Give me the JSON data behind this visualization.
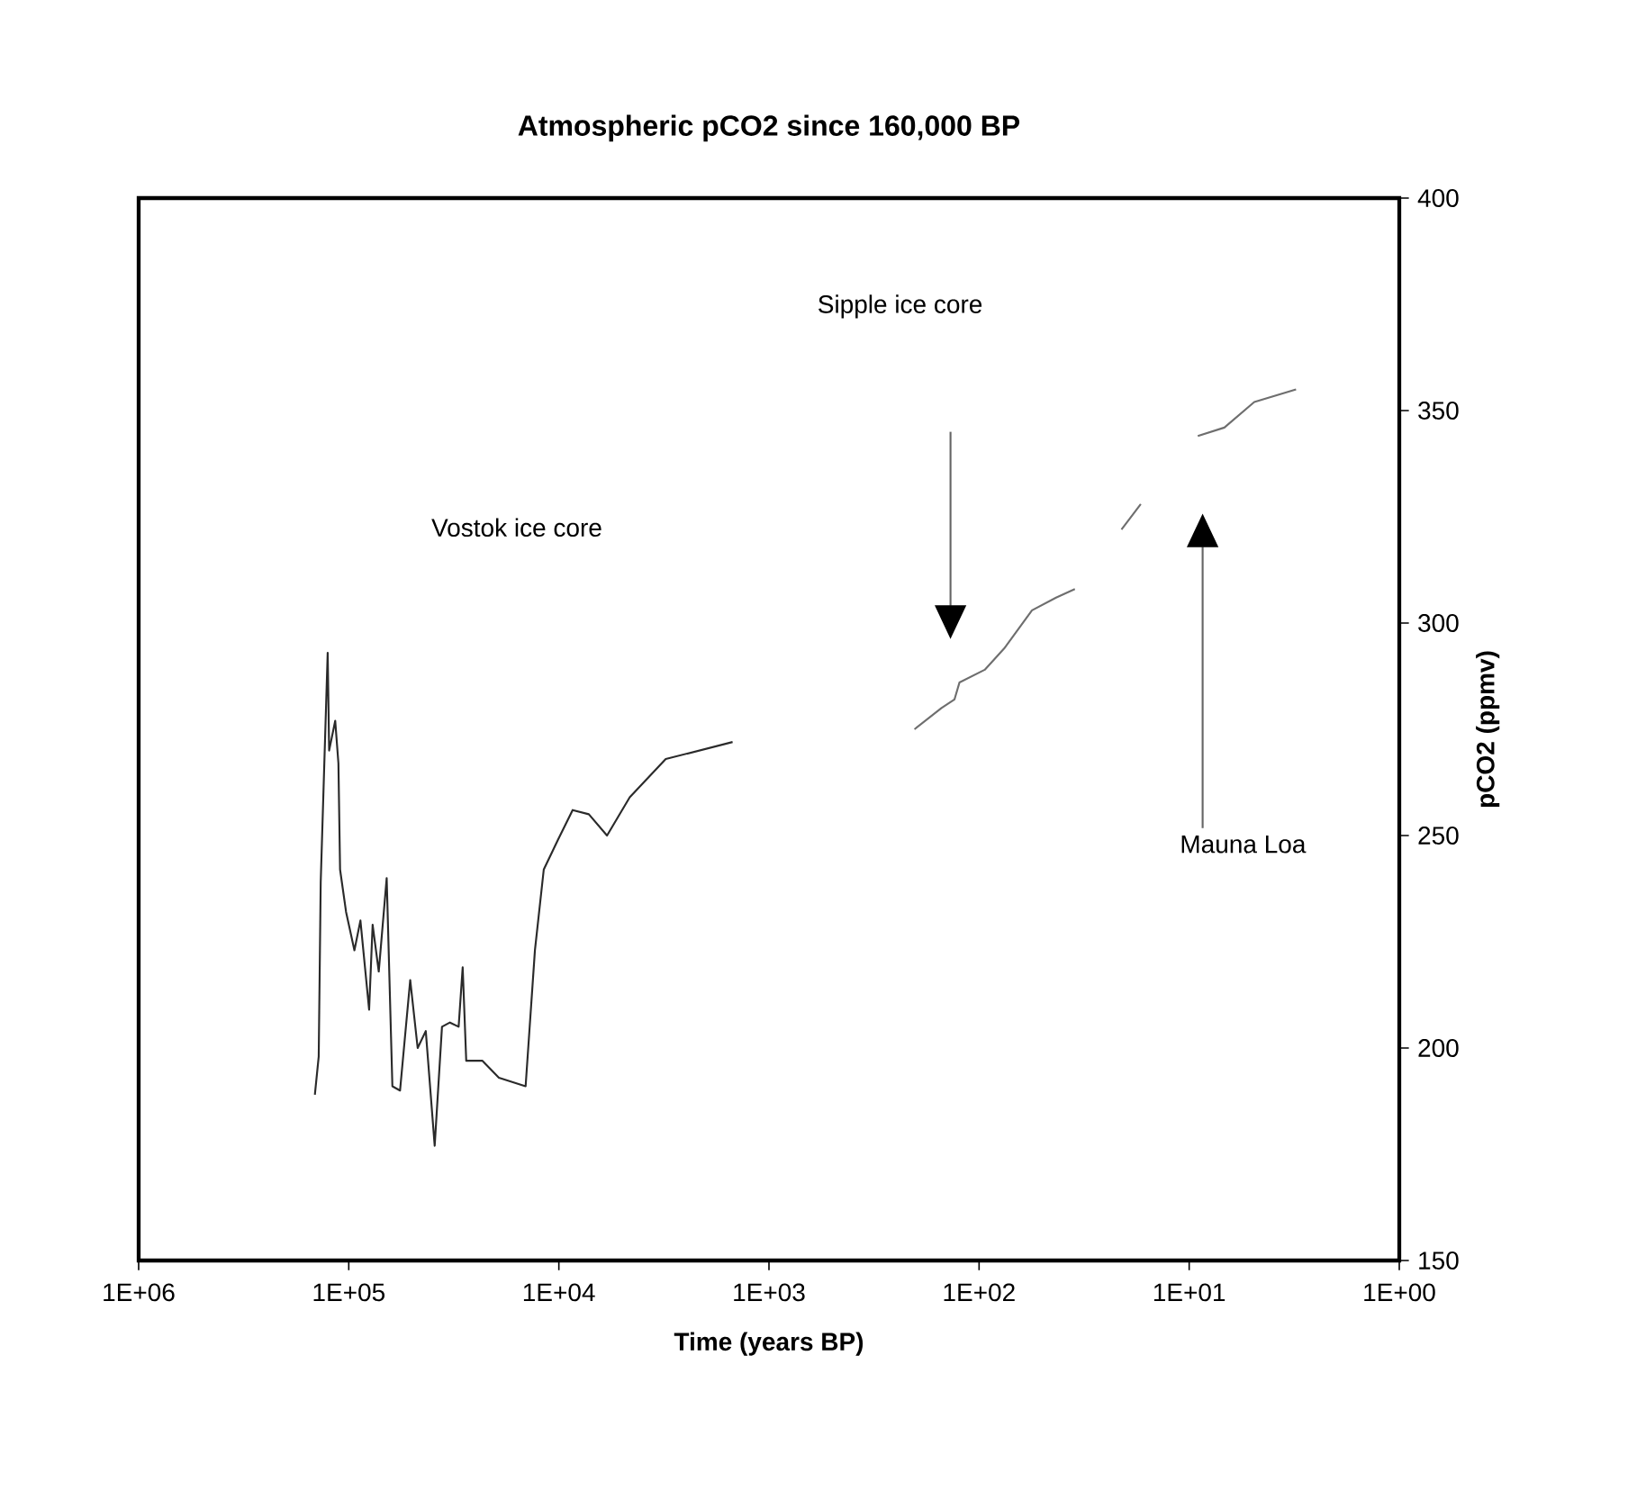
{
  "chart_data": {
    "type": "line",
    "title": "Atmospheric pCO2 since 160,000 BP",
    "xlabel": "Time (years BP)",
    "ylabel": "pCO2 (ppmv)",
    "log": "x",
    "grid": false,
    "marker": "none",
    "line_style": "solid",
    "xlim": [
      1000000,
      1
    ],
    "xticks": [
      {
        "value": 1000000,
        "label": "1E+06"
      },
      {
        "value": 100000,
        "label": "1E+05"
      },
      {
        "value": 10000,
        "label": "1E+04"
      },
      {
        "value": 1000,
        "label": "1E+03"
      },
      {
        "value": 100,
        "label": "1E+02"
      },
      {
        "value": 10,
        "label": "1E+01"
      },
      {
        "value": 1,
        "label": "1E+00"
      }
    ],
    "ylim": [
      150,
      400
    ],
    "yticks": [
      150,
      200,
      250,
      300,
      350,
      400
    ],
    "series": [
      {
        "color": "#2a2a2a",
        "x": [
          145000,
          139000,
          136000,
          126000,
          124000,
          116000,
          112000,
          110000,
          103000,
          94000,
          88000,
          80000,
          77000,
          72000,
          66000,
          62000,
          57000,
          51000,
          47000,
          43000,
          39000,
          36000,
          33000,
          30000,
          28700,
          27600,
          23100,
          19300,
          14400,
          13000,
          11800,
          10100,
          8600,
          7200,
          5900,
          4600,
          3100,
          1490
        ],
        "values": [
          189,
          198,
          239,
          293,
          270,
          277,
          267,
          242,
          232,
          223,
          230,
          209,
          229,
          218,
          240,
          191,
          190,
          216,
          200,
          204,
          177,
          205,
          206,
          205,
          219,
          197,
          197,
          193,
          191,
          223,
          242,
          249,
          256,
          255,
          250,
          259,
          268,
          272
        ]
      },
      {
        "color": "#6e6e6e",
        "x": [
          203,
          151,
          131,
          124,
          94,
          76,
          56,
          43,
          35,
          27,
          21,
          17
        ],
        "values": [
          275,
          280,
          282,
          286,
          289,
          294,
          303,
          306,
          308,
          null,
          322,
          328
        ]
      },
      {
        "color": "#6e6e6e",
        "x": [
          9.1,
          6.8,
          4.9,
          3.1
        ],
        "values": [
          344,
          346,
          352,
          355
        ]
      }
    ],
    "annotations": [
      "Vostok ice core",
      "Sipple ice core",
      "Mauna Loa"
    ]
  }
}
